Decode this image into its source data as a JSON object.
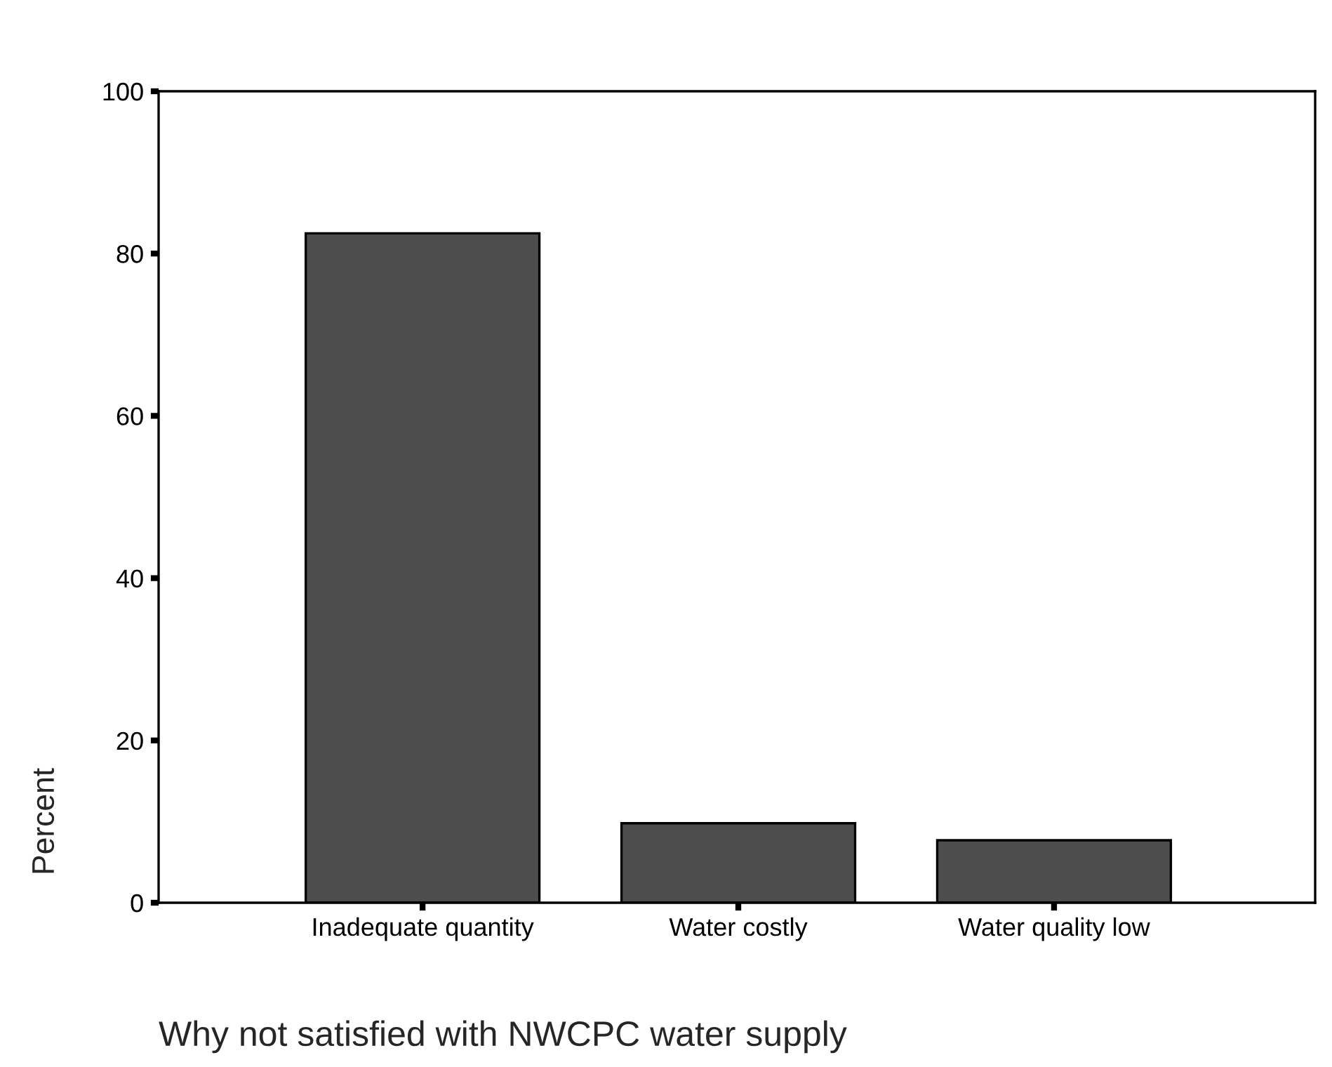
{
  "chart_data": {
    "type": "bar",
    "xlabel": "Why not satisfied with NWCPC water supply",
    "ylabel": "Percent",
    "categories": [
      "Inadequate quantity",
      "Water costly",
      "Water quality low"
    ],
    "values": [
      82.5,
      9.8,
      7.7
    ],
    "color": "#4d4d4d",
    "ylim": [
      0,
      100
    ],
    "yticks": [
      0,
      20,
      40,
      60,
      80,
      100
    ],
    "grid": false,
    "legend": false
  }
}
